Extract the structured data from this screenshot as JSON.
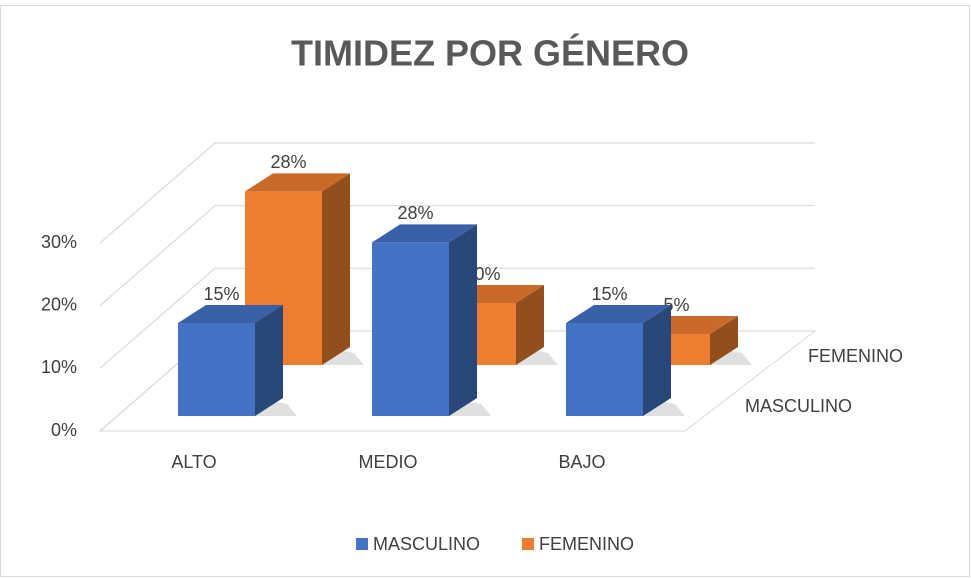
{
  "chart_data": {
    "type": "bar3d",
    "title": "TIMIDEZ POR GÉNERO",
    "categories": [
      "ALTO",
      "MEDIO",
      "BAJO"
    ],
    "series": [
      {
        "name": "MASCULINO",
        "color": "#4472c4",
        "values": [
          15,
          28,
          15
        ],
        "value_labels": [
          "15%",
          "28%",
          "15%"
        ]
      },
      {
        "name": "FEMENINO",
        "color": "#ed7d31",
        "values": [
          28,
          10,
          5
        ],
        "value_labels": [
          "28%",
          "10%",
          "5%"
        ]
      }
    ],
    "ylim": [
      0,
      30
    ],
    "yticks": [
      {
        "value": 0,
        "label": "0%"
      },
      {
        "value": 10,
        "label": "10%"
      },
      {
        "value": 20,
        "label": "20%"
      },
      {
        "value": 30,
        "label": "30%"
      }
    ],
    "grid": true,
    "legend": "bottom"
  }
}
